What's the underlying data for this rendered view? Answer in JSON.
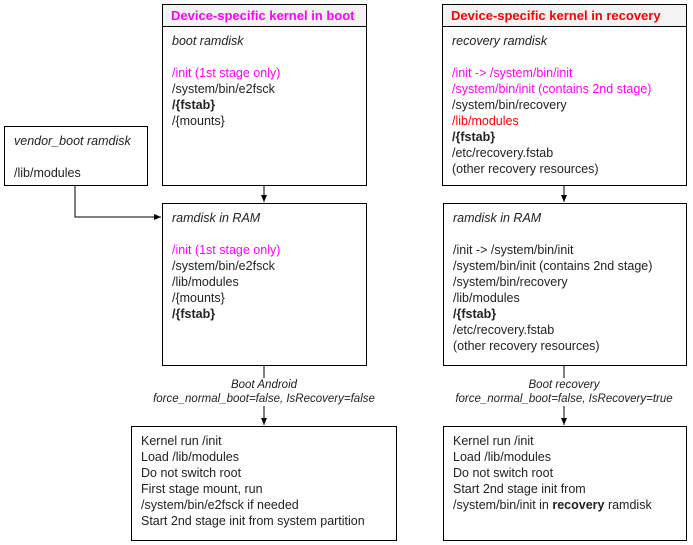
{
  "colors": {
    "magenta": "#ff00ff",
    "red": "#ff0000",
    "header_bg": "#f3f3f3"
  },
  "boot_kernel": {
    "title": "Device-specific kernel in boot",
    "lines": [
      {
        "text": "boot ramdisk",
        "style": "it"
      },
      {
        "text": "",
        "style": ""
      },
      {
        "text": "/init (1st stage only)",
        "style": "mag"
      },
      {
        "text": "/system/bin/e2fsck",
        "style": ""
      },
      {
        "text": "/{fstab}",
        "style": "b"
      },
      {
        "text": "/{mounts}",
        "style": ""
      }
    ]
  },
  "recovery_kernel": {
    "title": "Device-specific kernel in recovery",
    "lines": [
      {
        "text": "recovery ramdisk",
        "style": "it"
      },
      {
        "text": "",
        "style": ""
      },
      {
        "text": "/init -> /system/bin/init",
        "style": "mag"
      },
      {
        "text": "/system/bin/init (contains 2nd stage)",
        "style": "mag"
      },
      {
        "text": "/system/bin/recovery",
        "style": ""
      },
      {
        "text": "/lib/modules",
        "style": "red"
      },
      {
        "text": "/{fstab}",
        "style": "b"
      },
      {
        "text": "/etc/recovery.fstab",
        "style": ""
      },
      {
        "text": "(other recovery resources)",
        "style": ""
      }
    ]
  },
  "vendor_boot": {
    "lines": [
      {
        "text": "vendor_boot ramdisk",
        "style": "it"
      },
      {
        "text": "",
        "style": ""
      },
      {
        "text": "/lib/modules",
        "style": ""
      }
    ]
  },
  "ram_left": {
    "lines": [
      {
        "text": "ramdisk in RAM",
        "style": "it"
      },
      {
        "text": "",
        "style": ""
      },
      {
        "text": "/init (1st stage only)",
        "style": "mag"
      },
      {
        "text": "/system/bin/e2fsck",
        "style": ""
      },
      {
        "text": "/lib/modules",
        "style": ""
      },
      {
        "text": "/{mounts}",
        "style": ""
      },
      {
        "text": "/{fstab}",
        "style": "b"
      }
    ]
  },
  "ram_right": {
    "lines": [
      {
        "text": "ramdisk in RAM",
        "style": "it"
      },
      {
        "text": "",
        "style": ""
      },
      {
        "text": "/init -> /system/bin/init",
        "style": ""
      },
      {
        "text": "/system/bin/init (contains 2nd stage)",
        "style": ""
      },
      {
        "text": "/system/bin/recovery",
        "style": ""
      },
      {
        "text": "/lib/modules",
        "style": ""
      },
      {
        "text": "/{fstab}",
        "style": "b"
      },
      {
        "text": "/etc/recovery.fstab",
        "style": ""
      },
      {
        "text": "(other recovery resources)",
        "style": ""
      }
    ]
  },
  "label_left": {
    "line1": "Boot Android",
    "line2": "force_normal_boot=false, IsRecovery=false"
  },
  "label_right": {
    "line1": "Boot recovery",
    "line2": "force_normal_boot=false, IsRecovery=true"
  },
  "result_left": {
    "lines": [
      {
        "text": "Kernel run /init",
        "style": ""
      },
      {
        "text": "Load /lib/modules",
        "style": ""
      },
      {
        "text": "Do not switch root",
        "style": ""
      },
      {
        "text": "First stage mount, run",
        "style": ""
      },
      {
        "text": "/system/bin/e2fsck if needed",
        "style": ""
      },
      {
        "text": "Start 2nd stage init from system partition",
        "style": ""
      }
    ]
  },
  "result_right": {
    "lines": [
      {
        "text": "Kernel run /init",
        "style": ""
      },
      {
        "text": "Load /lib/modules",
        "style": ""
      },
      {
        "text": "Do not switch root",
        "style": ""
      },
      {
        "text": "Start 2nd stage init from",
        "style": ""
      },
      {
        "text": "/system/bin/init in ",
        "style": "",
        "bold_suffix": "recovery",
        "suffix": " ramdisk"
      }
    ]
  }
}
